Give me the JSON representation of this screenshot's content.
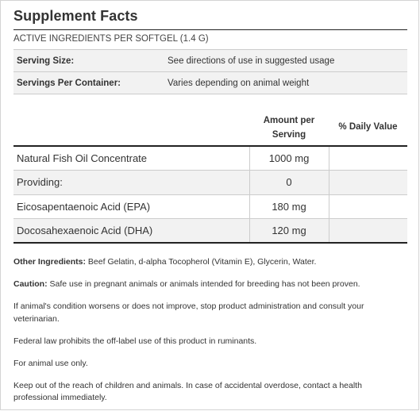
{
  "title": "Supplement Facts",
  "subheading": "ACTIVE INGREDIENTS PER SOFTGEL (1.4 G)",
  "serving_info": [
    {
      "label": "Serving Size:",
      "value": "See directions of use in suggested usage"
    },
    {
      "label": "Servings Per Container:",
      "value": "Varies depending on animal weight"
    }
  ],
  "columns": {
    "amount": "Amount per Serving",
    "daily_value": "% Daily Value"
  },
  "ingredients": [
    {
      "name": "Natural Fish Oil Concentrate",
      "amount": "1000 mg",
      "daily_value": ""
    },
    {
      "name": "Providing:",
      "amount": "0",
      "daily_value": ""
    },
    {
      "name": "Eicosapentaenoic Acid (EPA)",
      "amount": "180 mg",
      "daily_value": ""
    },
    {
      "name": "Docosahexaenoic Acid (DHA)",
      "amount": "120 mg",
      "daily_value": ""
    }
  ],
  "other_ingredients": {
    "label": "Other Ingredients:",
    "text": " Beef Gelatin, d-alpha Tocopherol (Vitamin E), Glycerin, Water."
  },
  "caution": {
    "label": "Caution:",
    "text": " Safe use in pregnant animals or animals intended for breeding has not been proven."
  },
  "notices": [
    "If animal's condition worsens or does not improve, stop product administration and consult your veterinarian.",
    "Federal law prohibits the off-label use of this product in ruminants.",
    "For animal use only.",
    "Keep out of the reach of children and animals. In case of accidental overdose, contact a health professional immediately."
  ],
  "colors": {
    "shade": "#f2f2f2",
    "rule": "#222222",
    "text": "#333333"
  }
}
